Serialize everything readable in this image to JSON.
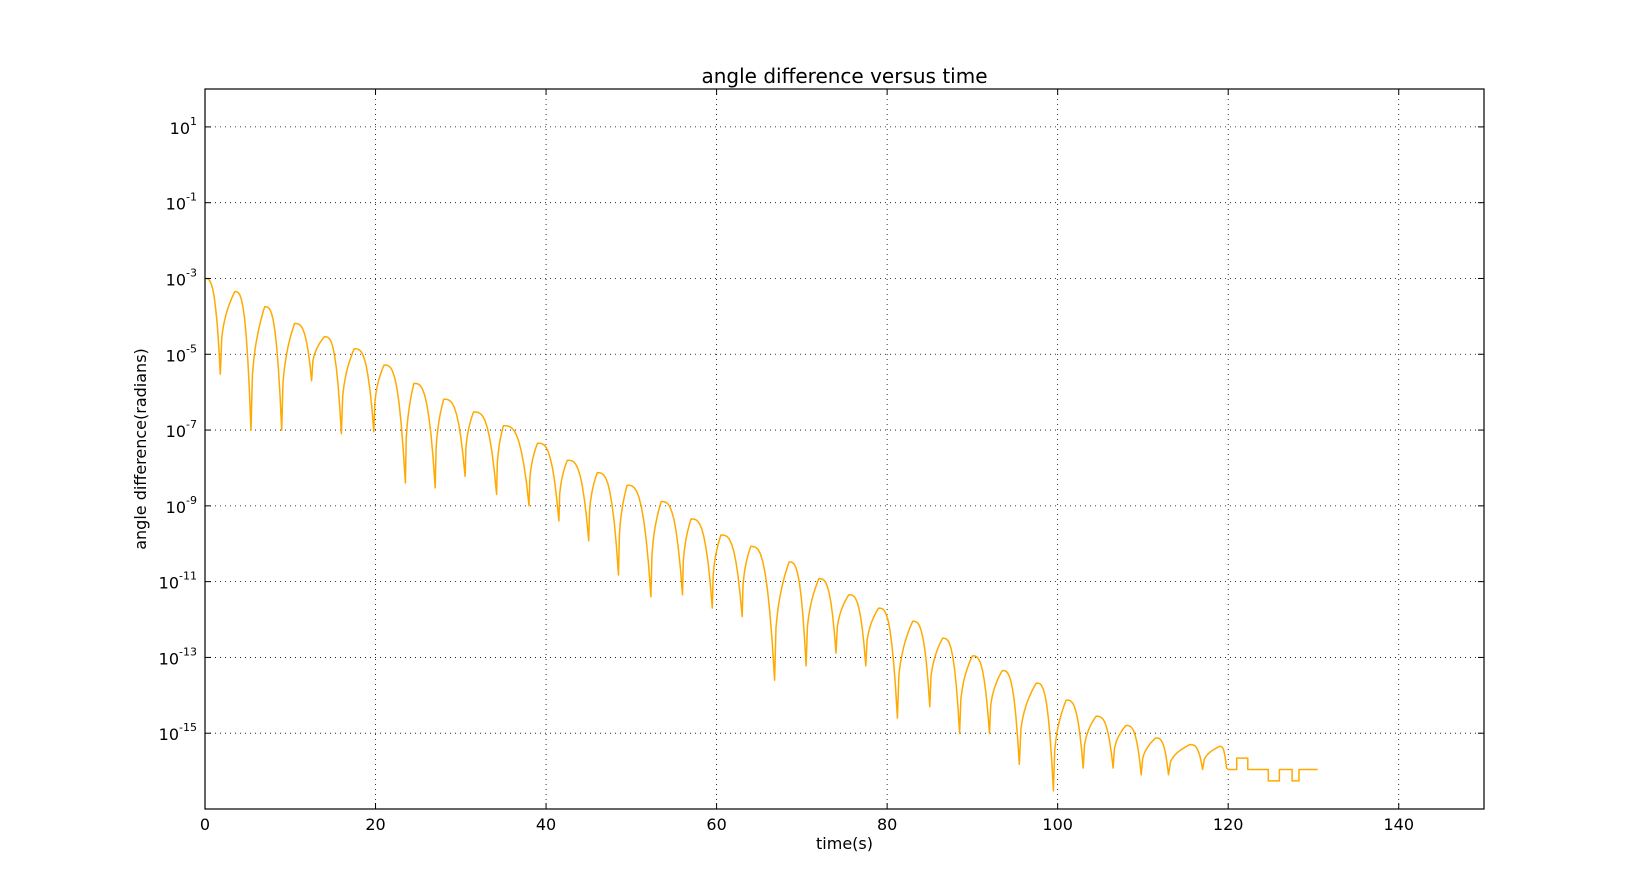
{
  "chart_data": {
    "type": "line",
    "title": "angle difference versus time",
    "xlabel": "time(s)",
    "ylabel": "angle difference(radians)",
    "xlim": [
      0,
      150
    ],
    "ylim": [
      1e-17,
      100
    ],
    "yscale": "log",
    "grid": true,
    "grid_style": "dotted",
    "x_ticks": [
      0,
      20,
      40,
      60,
      80,
      100,
      120,
      140
    ],
    "x_tick_labels": [
      "0",
      "20",
      "40",
      "60",
      "80",
      "100",
      "120",
      "140"
    ],
    "y_ticks": [
      1e-15,
      1e-13,
      1e-11,
      1e-09,
      1e-07,
      1e-05,
      0.001,
      0.1,
      10
    ],
    "y_tick_labels": [
      {
        "base": "10",
        "exp": "-15"
      },
      {
        "base": "10",
        "exp": "-13"
      },
      {
        "base": "10",
        "exp": "-11"
      },
      {
        "base": "10",
        "exp": "-9"
      },
      {
        "base": "10",
        "exp": "-7"
      },
      {
        "base": "10",
        "exp": "-5"
      },
      {
        "base": "10",
        "exp": "-3"
      },
      {
        "base": "10",
        "exp": "-1"
      },
      {
        "base": "10",
        "exp": "1"
      }
    ],
    "series": [
      {
        "color": "#ffaa00",
        "peaks": [
          [
            0.0,
            0.001
          ],
          [
            3.5,
            0.00045
          ],
          [
            7.0,
            0.00018
          ],
          [
            10.5,
            6.5e-05
          ],
          [
            14.0,
            2.9e-05
          ],
          [
            17.5,
            1.4e-05
          ],
          [
            21.0,
            5.2e-06
          ],
          [
            24.5,
            1.7e-06
          ],
          [
            28.0,
            6.5e-07
          ],
          [
            31.5,
            3e-07
          ],
          [
            35.0,
            1.3e-07
          ],
          [
            39.0,
            4.5e-08
          ],
          [
            42.5,
            1.6e-08
          ],
          [
            46.0,
            7.5e-09
          ],
          [
            49.5,
            3.5e-09
          ],
          [
            53.5,
            1.3e-09
          ],
          [
            57.0,
            4.5e-10
          ],
          [
            60.5,
            1.7e-10
          ],
          [
            64.0,
            8.5e-11
          ],
          [
            68.5,
            3.3e-11
          ],
          [
            72.0,
            1.2e-11
          ],
          [
            75.5,
            4.5e-12
          ],
          [
            79.0,
            2e-12
          ],
          [
            83.0,
            9e-13
          ],
          [
            86.5,
            3.2e-13
          ],
          [
            90.0,
            1.1e-13
          ],
          [
            93.5,
            4.5e-14
          ],
          [
            97.5,
            2.1e-14
          ],
          [
            101.0,
            7.5e-15
          ],
          [
            104.5,
            2.8e-15
          ],
          [
            108.0,
            1.6e-15
          ],
          [
            111.5,
            7.5e-16
          ],
          [
            115.5,
            5e-16
          ],
          [
            119.0,
            4.5e-16
          ]
        ],
        "dips": [
          [
            1.8,
            3e-06
          ],
          [
            5.4,
            1e-07
          ],
          [
            9.0,
            1e-07
          ],
          [
            12.5,
            2e-06
          ],
          [
            16.0,
            8e-08
          ],
          [
            19.8,
            9e-08
          ],
          [
            23.5,
            4e-09
          ],
          [
            27.0,
            3e-09
          ],
          [
            30.5,
            6e-09
          ],
          [
            34.2,
            2e-09
          ],
          [
            38.0,
            1e-09
          ],
          [
            41.5,
            4e-10
          ],
          [
            45.0,
            1.2e-10
          ],
          [
            48.5,
            1.5e-11
          ],
          [
            52.3,
            4e-12
          ],
          [
            56.0,
            4.5e-12
          ],
          [
            59.5,
            2e-12
          ],
          [
            63.0,
            1.2e-12
          ],
          [
            66.8,
            2.5e-14
          ],
          [
            70.5,
            6e-14
          ],
          [
            74.0,
            1.3e-13
          ],
          [
            77.5,
            6e-14
          ],
          [
            81.2,
            2.5e-15
          ],
          [
            85.0,
            5e-15
          ],
          [
            88.5,
            1e-15
          ],
          [
            92.0,
            1e-15
          ],
          [
            95.5,
            1.5e-16
          ],
          [
            99.5,
            3e-17
          ],
          [
            103.0,
            1.2e-16
          ],
          [
            106.5,
            1.2e-16
          ],
          [
            109.8,
            8e-17
          ],
          [
            113.0,
            8e-17
          ],
          [
            117.0,
            1.1e-16
          ],
          [
            119.8,
            1.2e-16
          ]
        ],
        "plateaus": [
          [
            120.0,
            1.1e-16
          ],
          [
            121.0,
            1.1e-16
          ],
          [
            121.0,
            2.2e-16
          ],
          [
            122.3,
            2.2e-16
          ],
          [
            122.3,
            1.1e-16
          ],
          [
            124.7,
            1.1e-16
          ],
          [
            124.7,
            5.5e-17
          ],
          [
            126.0,
            5.5e-17
          ],
          [
            126.0,
            1.1e-16
          ],
          [
            127.5,
            1.1e-16
          ],
          [
            127.5,
            5.5e-17
          ],
          [
            128.3,
            5.5e-17
          ],
          [
            128.3,
            1.1e-16
          ],
          [
            130.5,
            1.1e-16
          ]
        ]
      }
    ]
  }
}
